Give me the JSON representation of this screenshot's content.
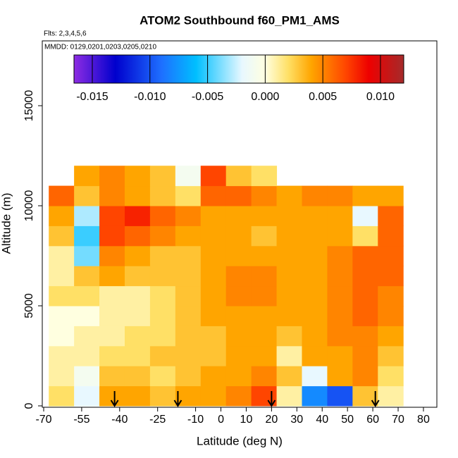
{
  "chart_data": {
    "type": "heatmap",
    "title": "ATOM2 Southbound f60_PM1_AMS",
    "subtitle": "Flts: 2,3,4,5,6",
    "annotation": "MMDD: 0129,0201,0203,0205,0210",
    "xlabel": "Latitude (deg N)",
    "ylabel": "Altitude (m)",
    "xlim": [
      -70.56,
      85.3
    ],
    "ylim": [
      -70,
      18240
    ],
    "xticks": [
      -70,
      -55,
      -40,
      -25,
      -10,
      0,
      10,
      20,
      30,
      40,
      50,
      60,
      70,
      80
    ],
    "yticks": [
      0,
      5000,
      10000,
      15000
    ],
    "x_edges": [
      -68,
      -58,
      -48,
      -38,
      -28,
      -18,
      -8,
      2,
      12,
      22,
      32,
      42,
      52,
      62,
      72
    ],
    "y_edges": [
      0,
      1000,
      2000,
      3000,
      4000,
      5000,
      6000,
      7000,
      8000,
      9000,
      10000,
      11000,
      12000
    ],
    "z": [
      [
        0.002,
        -0.002,
        0.004,
        0.004,
        0.003,
        0.004,
        0.004,
        0.005,
        0.007,
        0.001,
        -0.008,
        -0.01,
        0.003,
        0.001
      ],
      [
        0.001,
        -0.001,
        0.003,
        0.003,
        0.002,
        0.003,
        0.004,
        0.004,
        0.005,
        0.003,
        -0.002,
        0.004,
        0.005,
        0.002
      ],
      [
        0.001,
        0.001,
        0.002,
        0.002,
        0.003,
        0.003,
        0.003,
        0.004,
        0.004,
        0.001,
        0.004,
        0.004,
        0.005,
        0.003
      ],
      [
        0.0,
        0.001,
        0.001,
        0.002,
        0.002,
        0.003,
        0.003,
        0.004,
        0.004,
        0.003,
        0.004,
        0.005,
        0.005,
        0.004
      ],
      [
        0.0,
        0.0,
        0.001,
        0.001,
        0.002,
        0.003,
        0.004,
        0.004,
        0.004,
        0.004,
        0.004,
        0.005,
        0.006,
        0.005
      ],
      [
        0.002,
        0.002,
        0.001,
        0.001,
        0.002,
        0.003,
        0.004,
        0.005,
        0.005,
        0.004,
        0.004,
        0.005,
        0.006,
        0.005
      ],
      [
        0.001,
        0.003,
        0.004,
        0.003,
        0.003,
        0.003,
        0.004,
        0.005,
        0.005,
        0.004,
        0.004,
        0.005,
        0.006,
        0.006
      ],
      [
        0.001,
        -0.004,
        0.005,
        0.004,
        0.003,
        0.003,
        0.004,
        0.004,
        0.004,
        0.004,
        0.004,
        0.005,
        0.006,
        0.006
      ],
      [
        0.003,
        -0.005,
        0.007,
        0.006,
        0.005,
        0.004,
        0.004,
        0.004,
        0.003,
        0.004,
        0.004,
        0.004,
        0.002,
        0.006
      ],
      [
        0.004,
        -0.003,
        0.007,
        0.008,
        0.006,
        0.005,
        0.004,
        0.004,
        0.004,
        0.004,
        0.004,
        0.004,
        -0.002,
        0.006
      ],
      [
        0.006,
        0.003,
        0.005,
        0.004,
        0.003,
        0.002,
        0.006,
        0.006,
        0.005,
        0.004,
        0.005,
        0.005,
        0.004,
        0.004
      ],
      [
        null,
        0.004,
        0.005,
        0.004,
        0.003,
        -0.001,
        0.007,
        0.003,
        0.002,
        null,
        null,
        null,
        null,
        null
      ]
    ],
    "arrows_x": [
      -42,
      -17,
      20,
      61
    ],
    "colorbar_lim": [
      -0.01659,
      0.01202
    ],
    "colorbar_ticks": [
      {
        "value": -0.015,
        "label": "-0.015"
      },
      {
        "value": -0.01,
        "label": "-0.010"
      },
      {
        "value": -0.005,
        "label": "-0.005"
      },
      {
        "value": 0,
        "label": "0.000"
      },
      {
        "value": 0.005,
        "label": "0.005"
      },
      {
        "value": 0.01,
        "label": "0.010"
      }
    ],
    "colormap": [
      {
        "value": -0.0165,
        "color": "#8a2be2"
      },
      {
        "value": -0.013,
        "color": "#0000cd"
      },
      {
        "value": -0.009,
        "color": "#1e6fff"
      },
      {
        "value": -0.006,
        "color": "#00bfff"
      },
      {
        "value": -0.002,
        "color": "#e8f8ff"
      },
      {
        "value": 0,
        "color": "#ffffe0"
      },
      {
        "value": 0.002,
        "color": "#ffe066"
      },
      {
        "value": 0.004,
        "color": "#ffa500"
      },
      {
        "value": 0.007,
        "color": "#ff4500"
      },
      {
        "value": 0.009,
        "color": "#ee0000"
      },
      {
        "value": 0.012,
        "color": "#a52a2a"
      }
    ]
  }
}
